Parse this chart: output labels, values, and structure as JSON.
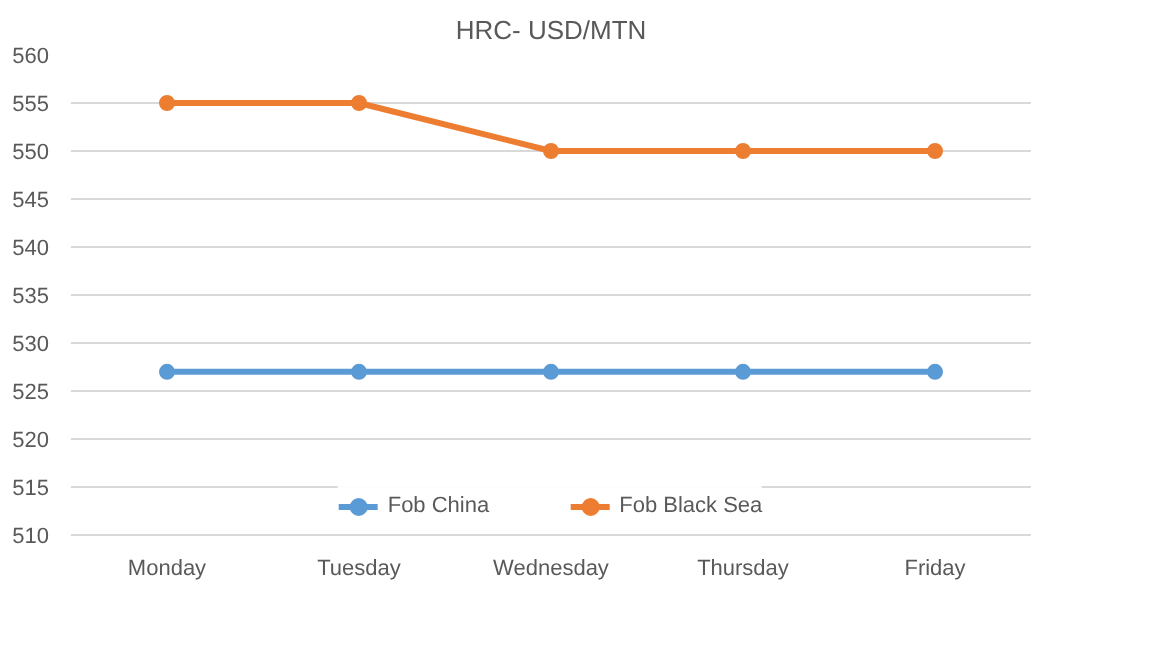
{
  "chart_data": {
    "type": "line",
    "title": "HRC- USD/MTN",
    "categories": [
      "Monday",
      "Tuesday",
      "Wednesday",
      "Thursday",
      "Friday"
    ],
    "series": [
      {
        "name": "Fob China",
        "color": "#5b9bd5",
        "values": [
          527,
          527,
          527,
          527,
          527
        ]
      },
      {
        "name": "Fob Black Sea",
        "color": "#ed7d31",
        "values": [
          555,
          555,
          550,
          550,
          550
        ]
      }
    ],
    "ylim": [
      510,
      560
    ],
    "yticks": [
      510,
      515,
      520,
      525,
      530,
      535,
      540,
      545,
      550,
      555,
      560
    ],
    "grid": "y",
    "legend": "bottom",
    "marker": "circle",
    "line_style": "solid"
  }
}
